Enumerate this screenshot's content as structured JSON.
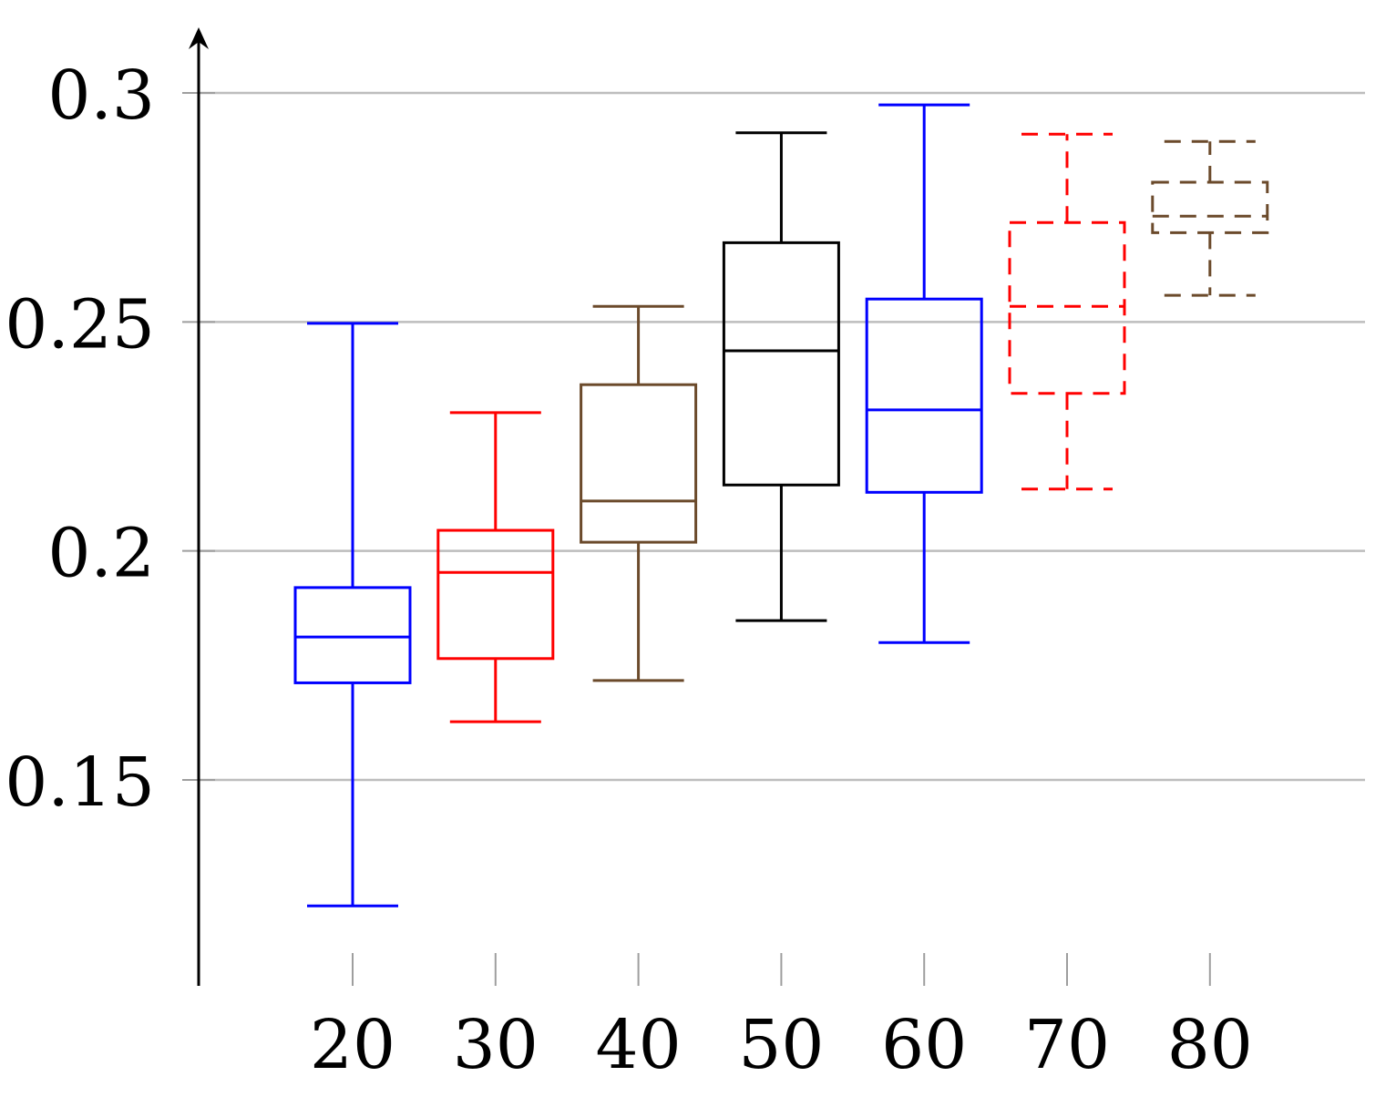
{
  "chart_data": {
    "type": "boxplot",
    "title": "",
    "xlabel": "",
    "ylabel": "",
    "ylim": [
      0.105,
      0.315
    ],
    "grid": true,
    "yticks": [
      {
        "value": 0.15,
        "label": "0.15"
      },
      {
        "value": 0.2,
        "label": "0.2"
      },
      {
        "value": 0.25,
        "label": "0.25"
      },
      {
        "value": 0.3,
        "label": "0.3"
      }
    ],
    "categories": [
      "20",
      "30",
      "40",
      "50",
      "60",
      "70",
      "80"
    ],
    "boxes": [
      {
        "label": "20",
        "color": "#0000ff",
        "style": "solid",
        "whisker_low": 0.1225,
        "q1": 0.1712,
        "median": 0.1812,
        "q3": 0.192,
        "whisker_high": 0.2497
      },
      {
        "label": "30",
        "color": "#ff0000",
        "style": "solid",
        "whisker_low": 0.1627,
        "q1": 0.1765,
        "median": 0.1953,
        "q3": 0.2045,
        "whisker_high": 0.2302
      },
      {
        "label": "40",
        "color": "#6b4a2b",
        "style": "solid",
        "whisker_low": 0.1717,
        "q1": 0.2019,
        "median": 0.2109,
        "q3": 0.2363,
        "whisker_high": 0.2534
      },
      {
        "label": "50",
        "color": "#000000",
        "style": "solid",
        "whisker_low": 0.1848,
        "q1": 0.2144,
        "median": 0.2437,
        "q3": 0.2673,
        "whisker_high": 0.2913
      },
      {
        "label": "60",
        "color": "#0000ff",
        "style": "solid",
        "whisker_low": 0.18,
        "q1": 0.2128,
        "median": 0.2308,
        "q3": 0.255,
        "whisker_high": 0.2974
      },
      {
        "label": "70",
        "color": "#ff0000",
        "style": "dashed",
        "whisker_low": 0.2135,
        "q1": 0.2344,
        "median": 0.2534,
        "q3": 0.2717,
        "whisker_high": 0.291
      },
      {
        "label": "80",
        "color": "#6b4a2b",
        "style": "dashed",
        "whisker_low": 0.2558,
        "q1": 0.2695,
        "median": 0.2731,
        "q3": 0.2805,
        "whisker_high": 0.2894
      }
    ]
  }
}
